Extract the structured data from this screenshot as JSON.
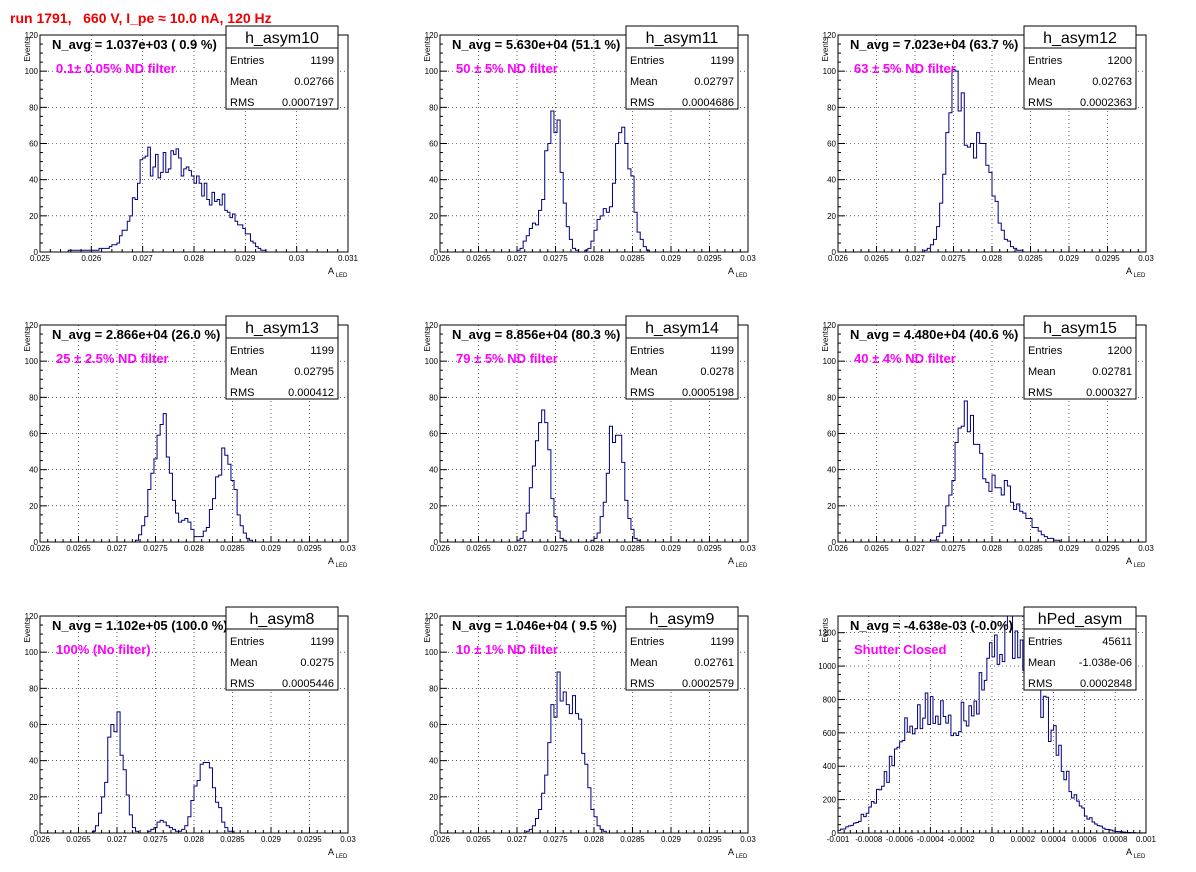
{
  "run_title": "run 1791,   660 V, I_pe ≈ 10.0 nA, 120 Hz",
  "colors": {
    "title": "#ee0000",
    "annotation": "#ff00ff",
    "histogram": "#000080",
    "frame": "#000000"
  },
  "stat_labels": {
    "entries": "Entries",
    "mean": "Mean",
    "rms": "RMS"
  },
  "axis_titles": {
    "y": "Events",
    "x_main": "A",
    "x_sub": "LED"
  },
  "panels": [
    {
      "name": "h_asym10",
      "navg": "N_avg = 1.037e+03 ( 0.9 %)",
      "filter": "0.1± 0.05% ND filter",
      "entries": "1199",
      "mean": "0.02766",
      "rms": "0.0007197",
      "xlim": [
        0.025,
        0.031
      ],
      "ylim": [
        0,
        120
      ],
      "xticks": [
        0.025,
        0.026,
        0.027,
        0.028,
        0.029,
        0.03,
        0.031
      ],
      "xtick_labels": [
        "0.025",
        "0.026",
        "0.027",
        "0.028",
        "0.029",
        "0.03",
        "0.031"
      ],
      "yticks": [
        0,
        20,
        40,
        60,
        80,
        100,
        120
      ],
      "shape": [
        [
          0.0263,
          0.00055,
          0.035
        ],
        [
          0.027,
          0.0002,
          0.55
        ],
        [
          0.0274,
          0.0004,
          0.95
        ],
        [
          0.0281,
          0.00045,
          0.8
        ],
        [
          0.0287,
          0.0002,
          0.28
        ],
        [
          0.02905,
          0.00012,
          0.12
        ]
      ],
      "ypeak": 50,
      "nbins": 120,
      "seed": 11
    },
    {
      "name": "h_asym11",
      "navg": "N_avg = 5.630e+04 (51.1 %)",
      "filter": "50 ± 5% ND filter",
      "entries": "1199",
      "mean": "0.02797",
      "rms": "0.0004686",
      "xlim": [
        0.026,
        0.03
      ],
      "ylim": [
        0,
        120
      ],
      "xticks": [
        0.026,
        0.0265,
        0.027,
        0.0275,
        0.028,
        0.0285,
        0.029,
        0.0295,
        0.03
      ],
      "xtick_labels": [
        "0.026",
        "0.0265",
        "0.027",
        "0.0275",
        "0.028",
        "0.0285",
        "0.029",
        "0.0295",
        "0.03"
      ],
      "yticks": [
        0,
        20,
        40,
        60,
        80,
        100,
        120
      ],
      "shape": [
        [
          0.02748,
          0.0001,
          1.0
        ],
        [
          0.02838,
          0.00011,
          0.86
        ],
        [
          0.0272,
          8e-05,
          0.15
        ],
        [
          0.0281,
          8e-05,
          0.22
        ]
      ],
      "ypeak": 78,
      "nbins": 100,
      "seed": 23
    },
    {
      "name": "h_asym12",
      "navg": "N_avg = 7.023e+04 (63.7 %)",
      "filter": "63 ± 5% ND filter",
      "entries": "1200",
      "mean": "0.02763",
      "rms": "0.0002363",
      "xlim": [
        0.026,
        0.03
      ],
      "ylim": [
        0,
        120
      ],
      "xticks": [
        0.026,
        0.0265,
        0.027,
        0.0275,
        0.028,
        0.0285,
        0.029,
        0.0295,
        0.03
      ],
      "xtick_labels": [
        "0.026",
        "0.0265",
        "0.027",
        "0.0275",
        "0.028",
        "0.0285",
        "0.029",
        "0.0295",
        "0.03"
      ],
      "yticks": [
        0,
        20,
        40,
        60,
        80,
        100,
        120
      ],
      "shape": [
        [
          0.02752,
          0.00012,
          1.0
        ],
        [
          0.02785,
          0.00018,
          0.45
        ],
        [
          0.0279,
          9e-05,
          0.25
        ]
      ],
      "ypeak": 97,
      "nbins": 100,
      "seed": 37
    },
    {
      "name": "h_asym13",
      "navg": "N_avg = 2.866e+04 (26.0 %)",
      "filter": "25 ± 2.5% ND filter",
      "entries": "1199",
      "mean": "0.02795",
      "rms": "0.000412",
      "xlim": [
        0.026,
        0.03
      ],
      "ylim": [
        0,
        120
      ],
      "xticks": [
        0.026,
        0.0265,
        0.027,
        0.0275,
        0.028,
        0.0285,
        0.029,
        0.0295,
        0.03
      ],
      "xtick_labels": [
        "0.026",
        "0.0265",
        "0.027",
        "0.0275",
        "0.028",
        "0.0285",
        "0.029",
        "0.0295",
        "0.03"
      ],
      "yticks": [
        0,
        20,
        40,
        60,
        80,
        100,
        120
      ],
      "shape": [
        [
          0.02757,
          0.00011,
          1.0
        ],
        [
          0.0284,
          0.00012,
          0.73
        ],
        [
          0.0279,
          8e-05,
          0.15
        ]
      ],
      "ypeak": 68,
      "nbins": 100,
      "seed": 41
    },
    {
      "name": "h_asym14",
      "navg": "N_avg = 8.856e+04 (80.3 %)",
      "filter": "79 ± 5% ND filter",
      "entries": "1199",
      "mean": "0.0278",
      "rms": "0.0005198",
      "xlim": [
        0.026,
        0.03
      ],
      "ylim": [
        0,
        120
      ],
      "xticks": [
        0.026,
        0.0265,
        0.027,
        0.0275,
        0.028,
        0.0285,
        0.029,
        0.0295,
        0.03
      ],
      "xtick_labels": [
        "0.026",
        "0.0265",
        "0.027",
        "0.0275",
        "0.028",
        "0.0285",
        "0.029",
        "0.0295",
        "0.03"
      ],
      "yticks": [
        0,
        20,
        40,
        60,
        80,
        100,
        120
      ],
      "shape": [
        [
          0.02732,
          0.0001,
          1.0
        ],
        [
          0.02828,
          0.0001,
          0.88
        ]
      ],
      "ypeak": 74,
      "nbins": 100,
      "seed": 53
    },
    {
      "name": "h_asym15",
      "navg": "N_avg = 4.480e+04 (40.6 %)",
      "filter": "40 ± 4% ND filter",
      "entries": "1200",
      "mean": "0.02781",
      "rms": "0.000327",
      "xlim": [
        0.026,
        0.03
      ],
      "ylim": [
        0,
        120
      ],
      "xticks": [
        0.026,
        0.0265,
        0.027,
        0.0275,
        0.028,
        0.0285,
        0.029,
        0.0295,
        0.03
      ],
      "xtick_labels": [
        "0.026",
        "0.0265",
        "0.027",
        "0.0275",
        "0.028",
        "0.0285",
        "0.029",
        "0.0295",
        "0.03"
      ],
      "yticks": [
        0,
        20,
        40,
        60,
        80,
        100,
        120
      ],
      "shape": [
        [
          0.02765,
          0.00014,
          1.0
        ],
        [
          0.02805,
          0.0002,
          0.42
        ],
        [
          0.0284,
          0.0002,
          0.14
        ]
      ],
      "ypeak": 75,
      "nbins": 100,
      "seed": 67
    },
    {
      "name": "h_asym8",
      "navg": "N_avg = 1.102e+05 (100.0 %)",
      "filter": "100% (No filter)",
      "entries": "1199",
      "mean": "0.0275",
      "rms": "0.0005446",
      "xlim": [
        0.026,
        0.03
      ],
      "ylim": [
        0,
        120
      ],
      "xticks": [
        0.026,
        0.0265,
        0.027,
        0.0275,
        0.028,
        0.0285,
        0.029,
        0.0295,
        0.03
      ],
      "xtick_labels": [
        "0.026",
        "0.0265",
        "0.027",
        "0.0275",
        "0.028",
        "0.0285",
        "0.029",
        "0.0295",
        "0.03"
      ],
      "yticks": [
        0,
        20,
        40,
        60,
        80,
        100,
        120
      ],
      "shape": [
        [
          0.02698,
          0.0001,
          1.0
        ],
        [
          0.02815,
          0.00012,
          0.62
        ],
        [
          0.0276,
          8e-05,
          0.1
        ]
      ],
      "ypeak": 68,
      "nbins": 100,
      "seed": 79
    },
    {
      "name": "h_asym9",
      "navg": "N_avg = 1.046e+04 ( 9.5 %)",
      "filter": "10 ± 1% ND filter",
      "entries": "1199",
      "mean": "0.02761",
      "rms": "0.0002579",
      "xlim": [
        0.026,
        0.03
      ],
      "ylim": [
        0,
        120
      ],
      "xticks": [
        0.026,
        0.0265,
        0.027,
        0.0275,
        0.028,
        0.0285,
        0.029,
        0.0295,
        0.03
      ],
      "xtick_labels": [
        "0.026",
        "0.0265",
        "0.027",
        "0.0275",
        "0.028",
        "0.0285",
        "0.029",
        "0.0295",
        "0.03"
      ],
      "yticks": [
        0,
        20,
        40,
        60,
        80,
        100,
        120
      ],
      "shape": [
        [
          0.02755,
          0.00014,
          1.0
        ],
        [
          0.0278,
          0.00012,
          0.6
        ]
      ],
      "ypeak": 83,
      "nbins": 100,
      "seed": 97
    },
    {
      "name": "hPed_asym",
      "navg": "N_avg = -4.638e-03 (-0.0%)",
      "filter": "Shutter Closed",
      "entries": "45611",
      "mean": "-1.038e-06",
      "rms": "0.0002848",
      "xlim": [
        -0.001,
        0.001
      ],
      "ylim": [
        0,
        1300
      ],
      "xticks": [
        -0.001,
        -0.0008,
        -0.0006,
        -0.0004,
        -0.0002,
        0,
        0.0002,
        0.0004,
        0.0006,
        0.0008,
        0.001
      ],
      "xtick_labels": [
        "-0.001",
        "-0.0008",
        "-0.0006",
        "-0.0004",
        "-0.0002",
        "0",
        "0.0002",
        "0.0004",
        "0.0006",
        "0.0008",
        "0.001"
      ],
      "yticks": [
        0,
        200,
        400,
        600,
        800,
        1000,
        1200
      ],
      "shape": [
        [
          -0.00045,
          0.0002,
          0.55
        ],
        [
          0.00013,
          0.00022,
          1.0
        ]
      ],
      "ypeak": 1230,
      "nbins": 120,
      "seed": 5
    }
  ]
}
